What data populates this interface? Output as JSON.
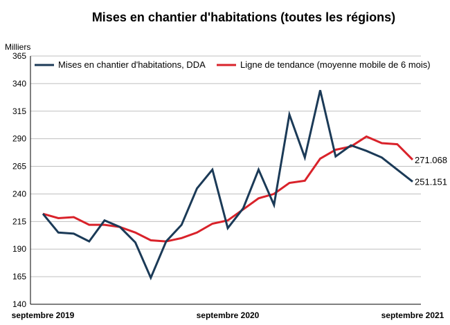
{
  "chart_data": {
    "type": "line",
    "title": "Mises en chantier d'habitations (toutes les régions)",
    "ylabel": "Milliers",
    "xlabel": "",
    "ylim": [
      140,
      365
    ],
    "yticks": [
      140,
      165,
      190,
      215,
      240,
      265,
      290,
      315,
      340,
      365
    ],
    "xtick_labels": [
      {
        "index": 0,
        "label": "septembre 2019"
      },
      {
        "index": 12,
        "label": "septembre 2020"
      },
      {
        "index": 24,
        "label": "septembre 2021"
      }
    ],
    "grid": true,
    "legend_position": "top",
    "series": [
      {
        "name": "Mises en chantier d'habitations, DDA",
        "color": "#1b3a57",
        "values": [
          222,
          205,
          204,
          197,
          216,
          210,
          196,
          164,
          197,
          212,
          245,
          262,
          209,
          227,
          262,
          230,
          312,
          273,
          334,
          274,
          284,
          279,
          273,
          262,
          251.151
        ]
      },
      {
        "name": "Ligne de tendance (moyenne mobile de 6 mois)",
        "color": "#d9222a",
        "values": [
          222,
          218,
          219,
          212,
          212,
          210,
          205,
          198,
          197,
          200,
          205,
          213,
          216,
          226,
          236,
          240,
          250,
          252,
          272,
          280,
          283,
          292,
          286,
          285,
          271.068
        ]
      }
    ],
    "end_labels": [
      {
        "series": 1,
        "text": "271.068"
      },
      {
        "series": 0,
        "text": "251.151"
      }
    ]
  }
}
